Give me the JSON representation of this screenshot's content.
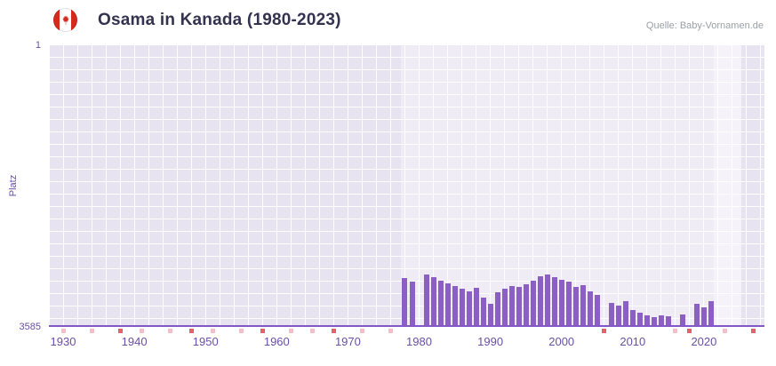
{
  "header": {
    "flag_icon": "canada-flag",
    "title": "Osama in Kanada (1980-2023)",
    "source": "Quelle: Baby-Vornamen.de"
  },
  "chart_data": {
    "type": "bar",
    "title": "Osama in Kanada (1980-2023)",
    "ylabel": "Platz",
    "y_axis": {
      "top_label": "1",
      "bottom_label": "3585",
      "min": 1,
      "max": 3585,
      "inverted": true
    },
    "x_axis": {
      "min": 1928,
      "max": 2028.5,
      "tick_years": [
        1930,
        1940,
        1950,
        1960,
        1970,
        1980,
        1990,
        2000,
        2010,
        2020
      ]
    },
    "series": [
      {
        "name": "Platz",
        "points": [
          [
            1978,
            2970
          ],
          [
            1979,
            3010
          ],
          [
            1981,
            2915
          ],
          [
            1982,
            2950
          ],
          [
            1983,
            2995
          ],
          [
            1984,
            3030
          ],
          [
            1985,
            3065
          ],
          [
            1986,
            3095
          ],
          [
            1987,
            3130
          ],
          [
            1988,
            3085
          ],
          [
            1989,
            3210
          ],
          [
            1990,
            3290
          ],
          [
            1991,
            3145
          ],
          [
            1992,
            3095
          ],
          [
            1993,
            3065
          ],
          [
            1994,
            3075
          ],
          [
            1995,
            3040
          ],
          [
            1996,
            2995
          ],
          [
            1997,
            2940
          ],
          [
            1998,
            2925
          ],
          [
            1999,
            2950
          ],
          [
            2000,
            2985
          ],
          [
            2001,
            3010
          ],
          [
            2002,
            3075
          ],
          [
            2003,
            3050
          ],
          [
            2004,
            3130
          ],
          [
            2005,
            3175
          ],
          [
            2007,
            3280
          ],
          [
            2008,
            3315
          ],
          [
            2009,
            3255
          ],
          [
            2010,
            3370
          ],
          [
            2011,
            3405
          ],
          [
            2012,
            3440
          ],
          [
            2013,
            3460
          ],
          [
            2014,
            3440
          ],
          [
            2015,
            3450
          ],
          [
            2017,
            3425
          ],
          [
            2019,
            3290
          ],
          [
            2020,
            3335
          ],
          [
            2021,
            3255
          ]
        ]
      }
    ],
    "no_data_marks": [
      {
        "year": 1930,
        "dark": false
      },
      {
        "year": 1934,
        "dark": false
      },
      {
        "year": 1938,
        "dark": true
      },
      {
        "year": 1941,
        "dark": false
      },
      {
        "year": 1945,
        "dark": false
      },
      {
        "year": 1948,
        "dark": true
      },
      {
        "year": 1951,
        "dark": false
      },
      {
        "year": 1955,
        "dark": false
      },
      {
        "year": 1958,
        "dark": true
      },
      {
        "year": 1962,
        "dark": false
      },
      {
        "year": 1965,
        "dark": false
      },
      {
        "year": 1968,
        "dark": true
      },
      {
        "year": 1972,
        "dark": false
      },
      {
        "year": 1976,
        "dark": false
      },
      {
        "year": 2006,
        "dark": true
      },
      {
        "year": 2016,
        "dark": false
      },
      {
        "year": 2018,
        "dark": true
      },
      {
        "year": 2023,
        "dark": false
      },
      {
        "year": 2027,
        "dark": true
      }
    ],
    "plot_bands": [
      {
        "from": 1977.5,
        "to": 2021.4,
        "color": "rgba(255,255,255,0.32)"
      },
      {
        "from": 2021.4,
        "to": 2025.2,
        "color": "rgba(255,255,255,0.58)"
      }
    ],
    "colors": {
      "bar": "#8c5fc4",
      "axis_line": "#8257c6",
      "plot_background": "#e7e3f1",
      "grid": "#ffffff",
      "tick_label": "#6b4fa3",
      "mark_light": "#f5bfca",
      "mark_dark": "#e65f6b",
      "title": "#33334f",
      "source": "#9aa0a6"
    },
    "legend": "off",
    "grid": "on"
  }
}
